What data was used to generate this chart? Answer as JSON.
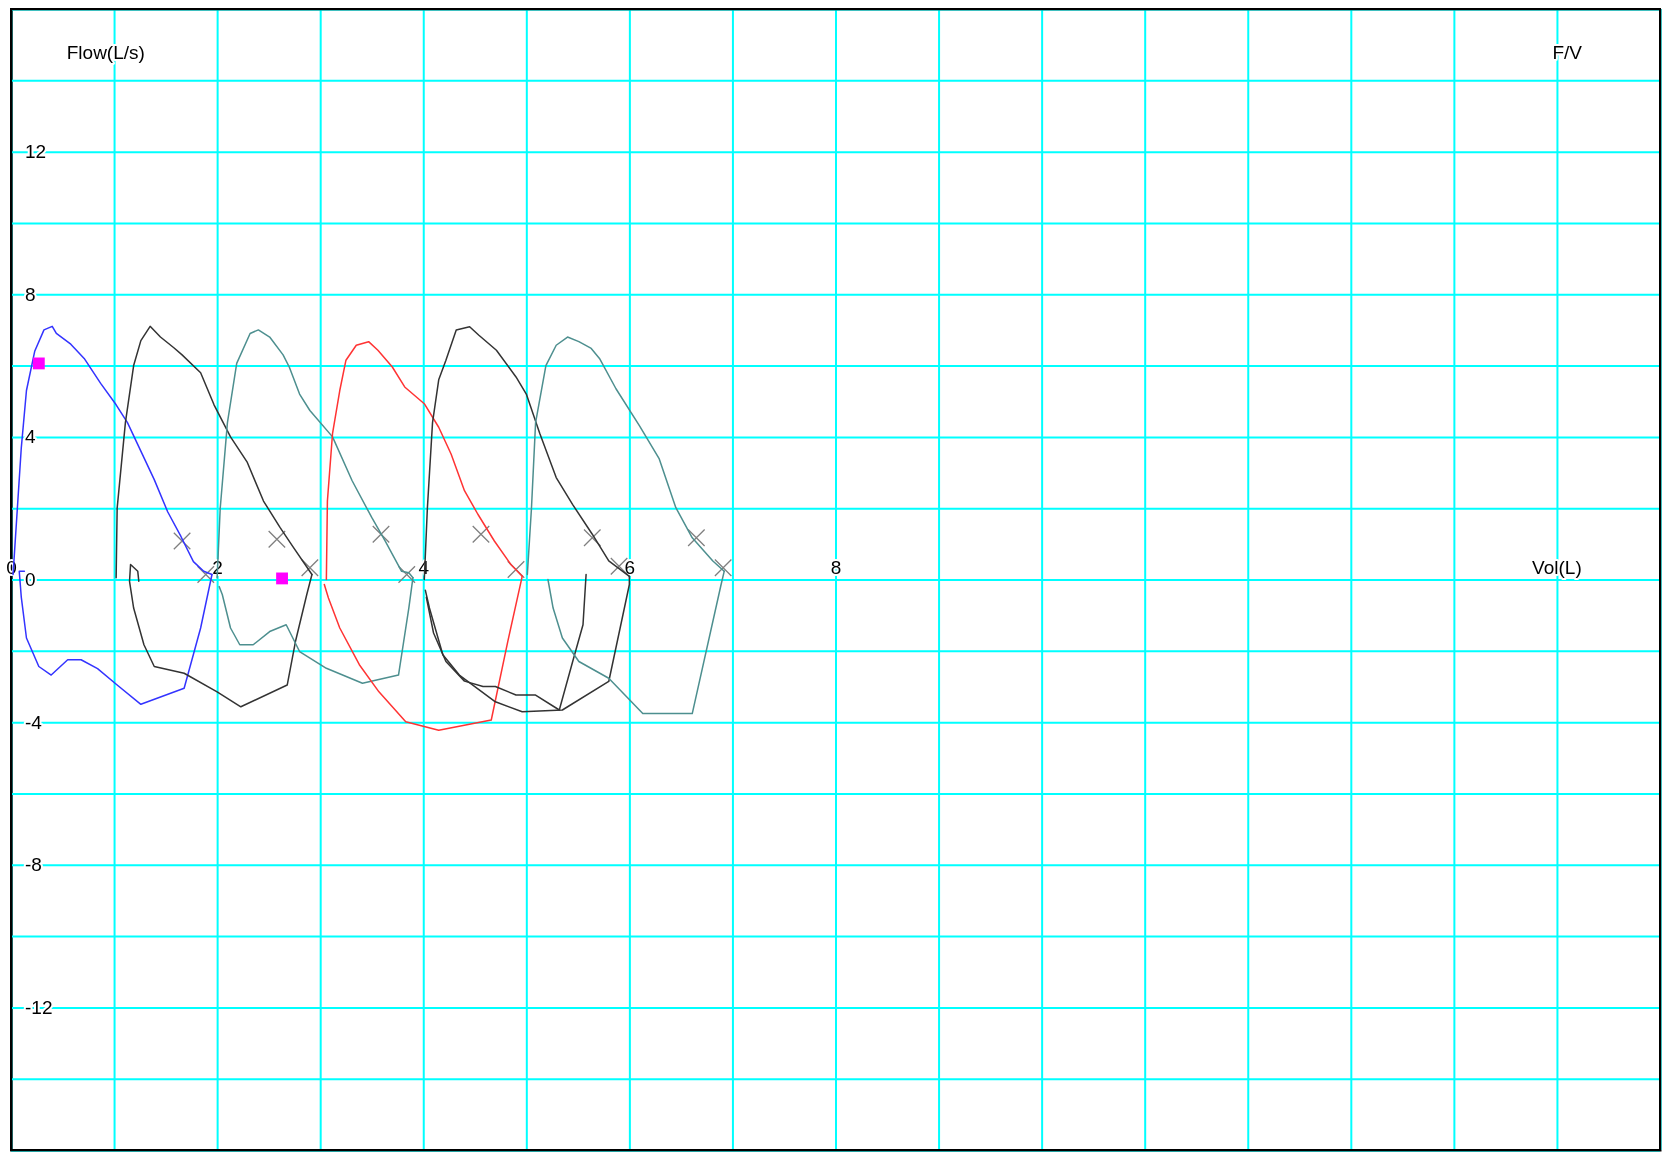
{
  "chart_data": {
    "type": "line",
    "title": "F/V",
    "xlabel": "Vol(L)",
    "ylabel": "Flow(L/s)",
    "xlim": [
      0,
      16
    ],
    "ylim": [
      -16,
      16
    ],
    "xticks": [
      {
        "value": 0,
        "label": "0"
      },
      {
        "value": 1,
        "label": null
      },
      2,
      {
        "value": 3,
        "label": null
      },
      4,
      {
        "value": 5,
        "label": null
      },
      6,
      {
        "value": 7,
        "label": null
      },
      8,
      {
        "value": 9,
        "label": null
      },
      {
        "value": 10,
        "label": null
      },
      {
        "value": 11,
        "label": null
      },
      {
        "value": 12,
        "label": null
      },
      {
        "value": 13,
        "label": null
      },
      {
        "value": 14,
        "label": null
      },
      {
        "value": 15,
        "label": null
      },
      {
        "value": 16,
        "label": null
      }
    ],
    "yticks": [
      {
        "value": -16,
        "label": null
      },
      {
        "value": -14,
        "label": null
      },
      -12,
      {
        "value": -10,
        "label": null
      },
      -8,
      {
        "value": -6,
        "label": null
      },
      -4,
      {
        "value": -2,
        "label": null
      },
      0,
      {
        "value": 2,
        "label": null
      },
      4,
      {
        "value": 6,
        "label": null
      },
      8,
      {
        "value": 10,
        "label": null
      },
      12,
      {
        "value": 14,
        "label": null
      },
      {
        "value": 16,
        "label": null
      }
    ],
    "grid": true,
    "legend": false,
    "marker": "none",
    "line_style": "solid",
    "series": [
      {
        "type": "scatter",
        "marker": "cross",
        "color": "#808080",
        "x": [
          1.66,
          1.89,
          2.58,
          2.9,
          3.59,
          3.84,
          4.56,
          4.9,
          5.64,
          5.9,
          6.65,
          6.91
        ],
        "values": [
          1.08,
          0.14,
          1.13,
          0.33,
          1.27,
          0.14,
          1.27,
          0.28,
          1.17,
          0.37,
          1.17,
          0.33
        ]
      },
      {
        "color": "#3333ff",
        "x": [
          0.02,
          0.1,
          0.15,
          0.23,
          0.32,
          0.4,
          0.44,
          0.58,
          0.71,
          0.87,
          1.02,
          1.13,
          1.26,
          1.39,
          1.52,
          1.65,
          1.77,
          1.87,
          1.95
        ],
        "values": [
          0.14,
          3.7,
          5.3,
          6.4,
          7.0,
          7.1,
          6.9,
          6.6,
          6.2,
          5.5,
          4.9,
          4.4,
          3.6,
          2.8,
          1.9,
          1.2,
          0.5,
          0.23,
          0.14
        ]
      },
      {
        "color": "#3333ff",
        "x": [
          0.13,
          0.08,
          0.1,
          0.15,
          0.27,
          0.39,
          0.55,
          0.68,
          0.84,
          1.03,
          1.26,
          1.68,
          1.84,
          1.95
        ],
        "values": [
          0.23,
          0.23,
          -0.5,
          -1.64,
          -2.44,
          -2.68,
          -2.25,
          -2.25,
          -2.5,
          -2.96,
          -3.5,
          -3.05,
          -1.36,
          0.14
        ]
      },
      {
        "color": "#333333",
        "x": [
          1.02,
          1.03,
          1.11,
          1.19,
          1.26,
          1.35,
          1.45,
          1.58,
          1.66,
          1.84,
          1.97,
          2.13,
          2.29,
          2.45,
          2.61,
          2.74,
          2.92
        ],
        "values": [
          0.05,
          2.0,
          4.4,
          6.0,
          6.7,
          7.1,
          6.8,
          6.5,
          6.3,
          5.8,
          4.9,
          4.0,
          3.3,
          2.2,
          1.46,
          0.9,
          0.14
        ]
      },
      {
        "color": "#333333",
        "x": [
          1.24,
          1.23,
          1.16,
          1.15,
          1.19,
          1.29,
          1.39,
          1.68,
          2.0,
          2.23,
          2.68,
          2.76,
          2.87,
          2.92
        ],
        "values": [
          -0.05,
          0.23,
          0.42,
          -0.05,
          -0.8,
          -1.83,
          -2.44,
          -2.63,
          -3.15,
          -3.57,
          -2.96,
          -1.74,
          -0.42,
          0.14
        ]
      },
      {
        "color": "#4d8f8f",
        "x": [
          2.0,
          2.03,
          2.1,
          2.19,
          2.32,
          2.4,
          2.51,
          2.64,
          2.7,
          2.8,
          2.9,
          3.12,
          3.31,
          3.5,
          3.63,
          3.79,
          3.86,
          3.9
        ],
        "values": [
          0.05,
          2.0,
          4.4,
          6.06,
          6.9,
          7.0,
          6.8,
          6.3,
          5.96,
          5.2,
          4.74,
          4.0,
          2.77,
          1.74,
          1.08,
          0.23,
          0.19,
          0.05
        ]
      },
      {
        "color": "#4d8f8f",
        "x": [
          2.02,
          2.05,
          2.13,
          2.22,
          2.35,
          2.51,
          2.67,
          2.8,
          3.06,
          3.41,
          3.76,
          3.86,
          3.9
        ],
        "values": [
          -0.2,
          -0.42,
          -1.36,
          -1.83,
          -1.83,
          -1.46,
          -1.27,
          -2.02,
          -2.49,
          -2.91,
          -2.68,
          -0.8,
          0.05
        ]
      },
      {
        "color": "#ff3333",
        "x": [
          3.06,
          3.07,
          3.12,
          3.19,
          3.25,
          3.35,
          3.47,
          3.56,
          3.7,
          3.82,
          4.01,
          4.15,
          4.27,
          4.4,
          4.53,
          4.69,
          4.85,
          4.96
        ],
        "values": [
          0,
          2.2,
          4.1,
          5.3,
          6.15,
          6.57,
          6.67,
          6.43,
          5.96,
          5.4,
          4.93,
          4.27,
          3.52,
          2.49,
          1.83,
          1.08,
          0.42,
          0.09
        ]
      },
      {
        "color": "#ff3333",
        "x": [
          3.04,
          3.08,
          3.19,
          3.38,
          3.57,
          3.83,
          4.15,
          4.66,
          4.82,
          4.96
        ],
        "values": [
          -0.14,
          -0.52,
          -1.36,
          -2.39,
          -3.15,
          -3.99,
          -4.23,
          -3.94,
          -1.74,
          0.09
        ]
      },
      {
        "color": "#333333",
        "x": [
          4.01,
          4.04,
          4.09,
          4.15,
          4.22,
          4.32,
          4.45,
          4.54,
          4.71,
          4.9,
          5.0,
          5.13,
          5.29,
          5.45,
          5.64,
          5.8,
          6.0
        ],
        "values": [
          0,
          2.0,
          4.4,
          5.6,
          6.15,
          7.0,
          7.09,
          6.85,
          6.43,
          5.68,
          5.2,
          4.1,
          2.86,
          2.1,
          1.27,
          0.52,
          0.09
        ]
      },
      {
        "color": "#333333",
        "x": [
          4.02,
          4.06,
          4.19,
          4.35,
          4.7,
          4.96,
          5.35,
          5.8,
          6.0,
          6.0
        ],
        "values": [
          -0.3,
          -0.8,
          -2.11,
          -2.68,
          -3.43,
          -3.71,
          -3.66,
          -2.86,
          -0.14,
          0.09
        ]
      },
      {
        "color": "#333333",
        "x": [
          4.03,
          4.1,
          4.22,
          4.4,
          4.58,
          4.7,
          4.9,
          5.09,
          5.32,
          5.45,
          5.55,
          5.58
        ],
        "values": [
          -0.5,
          -1.5,
          -2.3,
          -2.85,
          -3.0,
          -3.0,
          -3.24,
          -3.24,
          -3.66,
          -2.3,
          -1.27,
          0.14
        ]
      },
      {
        "color": "#4d8f8f",
        "x": [
          5.01,
          5.05,
          5.09,
          5.19,
          5.29,
          5.4,
          5.51,
          5.63,
          5.71,
          5.87,
          6.1,
          6.29,
          6.45,
          6.61,
          6.81,
          6.92
        ],
        "values": [
          0.14,
          2.0,
          4.4,
          6.0,
          6.57,
          6.8,
          6.67,
          6.48,
          6.2,
          5.35,
          4.3,
          3.38,
          2.02,
          1.17,
          0.52,
          0.23
        ]
      },
      {
        "color": "#4d8f8f",
        "x": [
          5.21,
          5.26,
          5.35,
          5.51,
          5.8,
          6.13,
          6.61,
          6.89,
          6.92
        ],
        "values": [
          0,
          -0.8,
          -1.64,
          -2.3,
          -2.77,
          -3.76,
          -3.76,
          -0.14,
          0.23
        ]
      },
      {
        "type": "scatter",
        "marker": "square",
        "color": "#ff00ff",
        "x": [
          0.27,
          2.63
        ],
        "values": [
          6.06,
          0.03
        ]
      }
    ]
  }
}
